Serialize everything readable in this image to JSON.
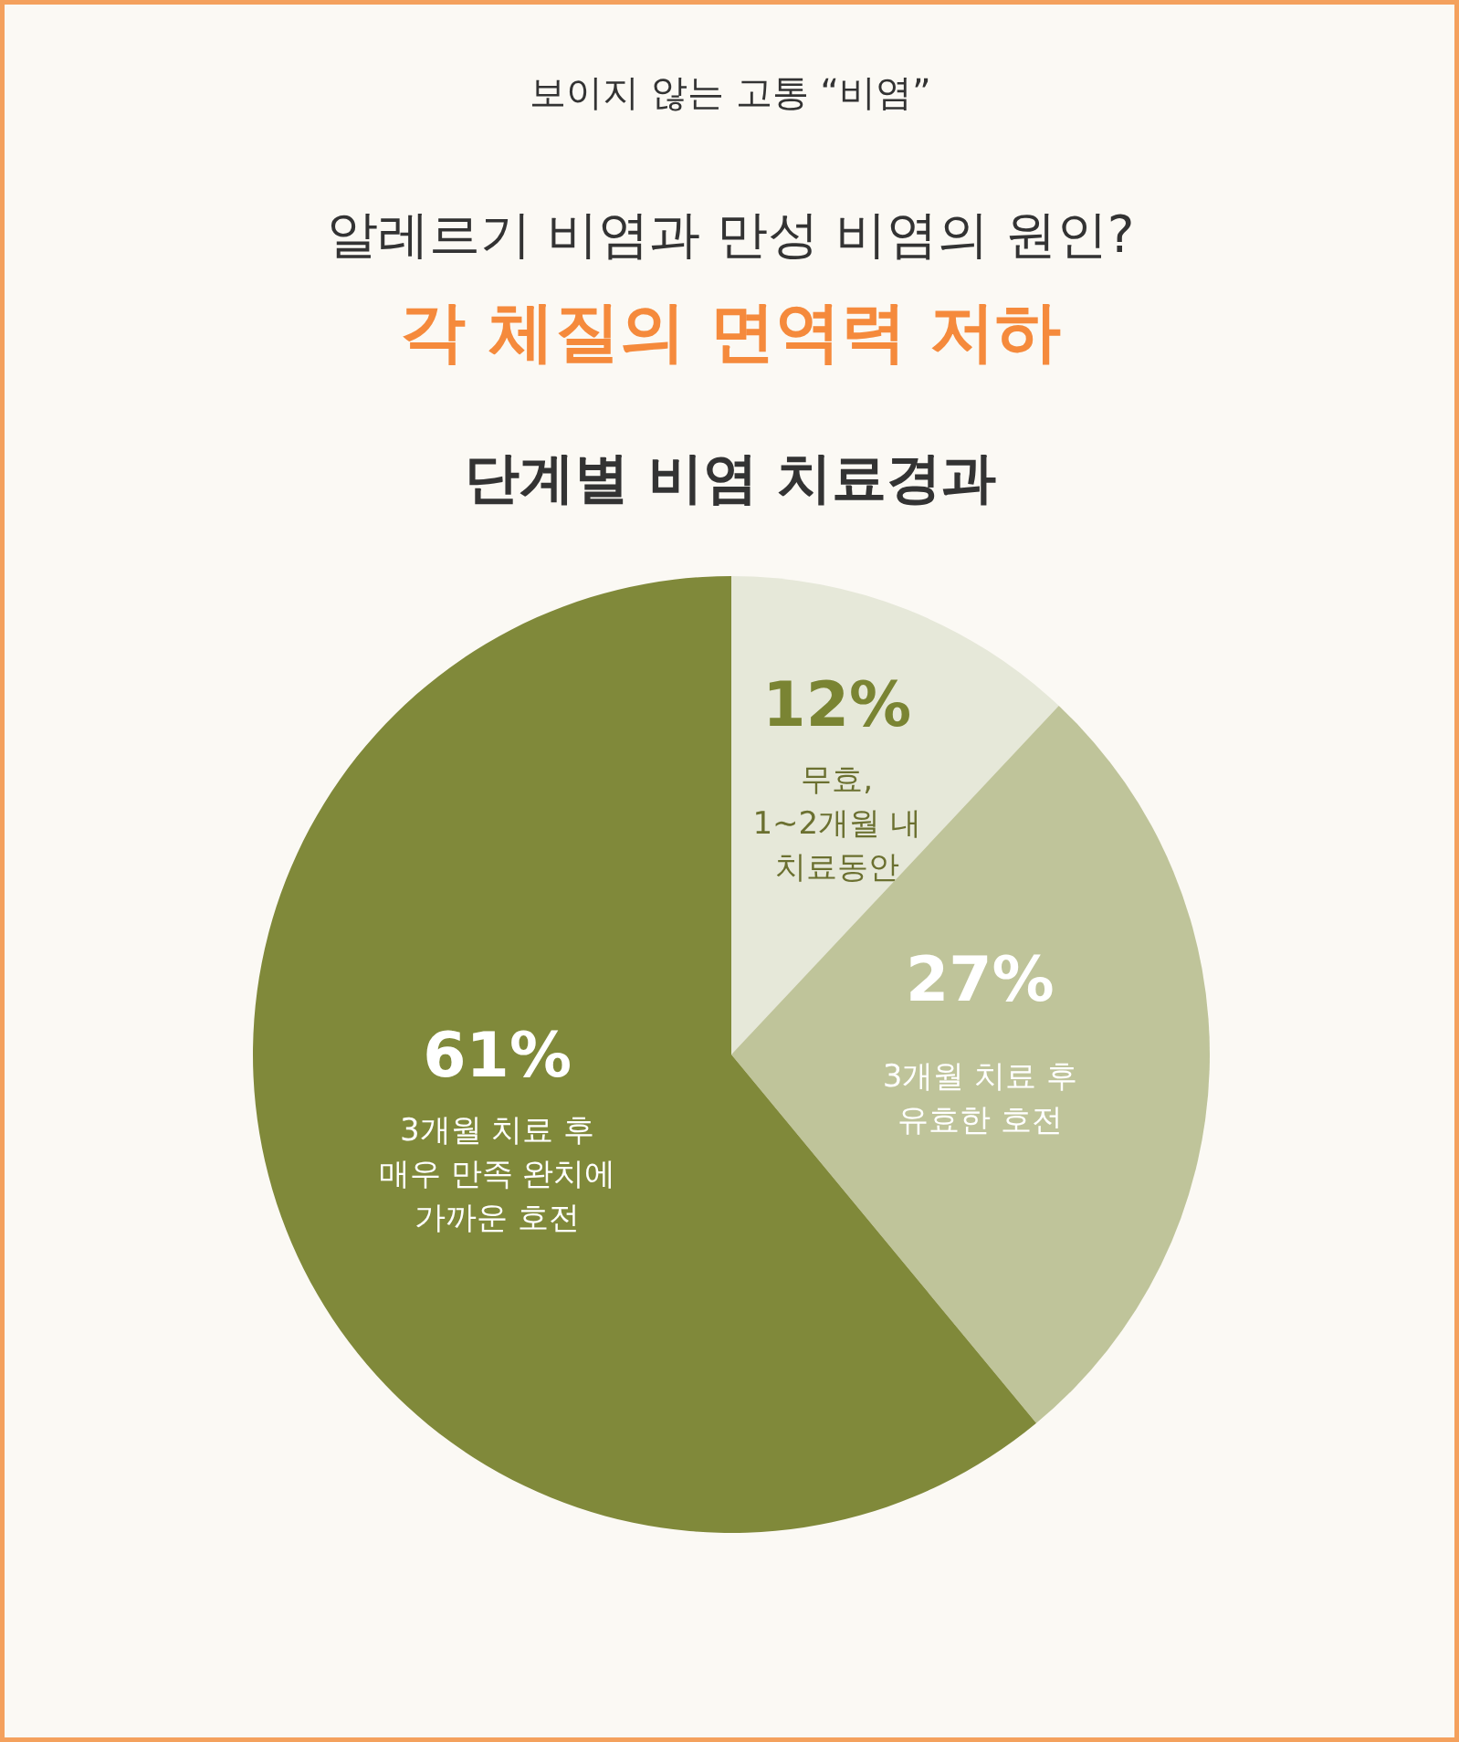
{
  "chart_data": {
    "type": "pie",
    "title": "보이지 않는 고통 “비염”",
    "subtitle": "알레르기 비염과 만성 비염의 원인?",
    "annotations": [
      "각 체질의 면역력 저하",
      "단계별 비염 치료경과"
    ],
    "categories": [
      "무효,\n1~2개월 내\n치료동안",
      "3개월 치료 후\n유효한 호전",
      "3개월 치료 후\n매우 만족 완치에\n가까운 호전"
    ],
    "values": [
      12,
      27,
      61
    ],
    "colors": [
      "#e6e8d9",
      "#bfc49a",
      "#80893a"
    ],
    "value_labels": [
      "12%",
      "27%",
      "61%"
    ]
  }
}
